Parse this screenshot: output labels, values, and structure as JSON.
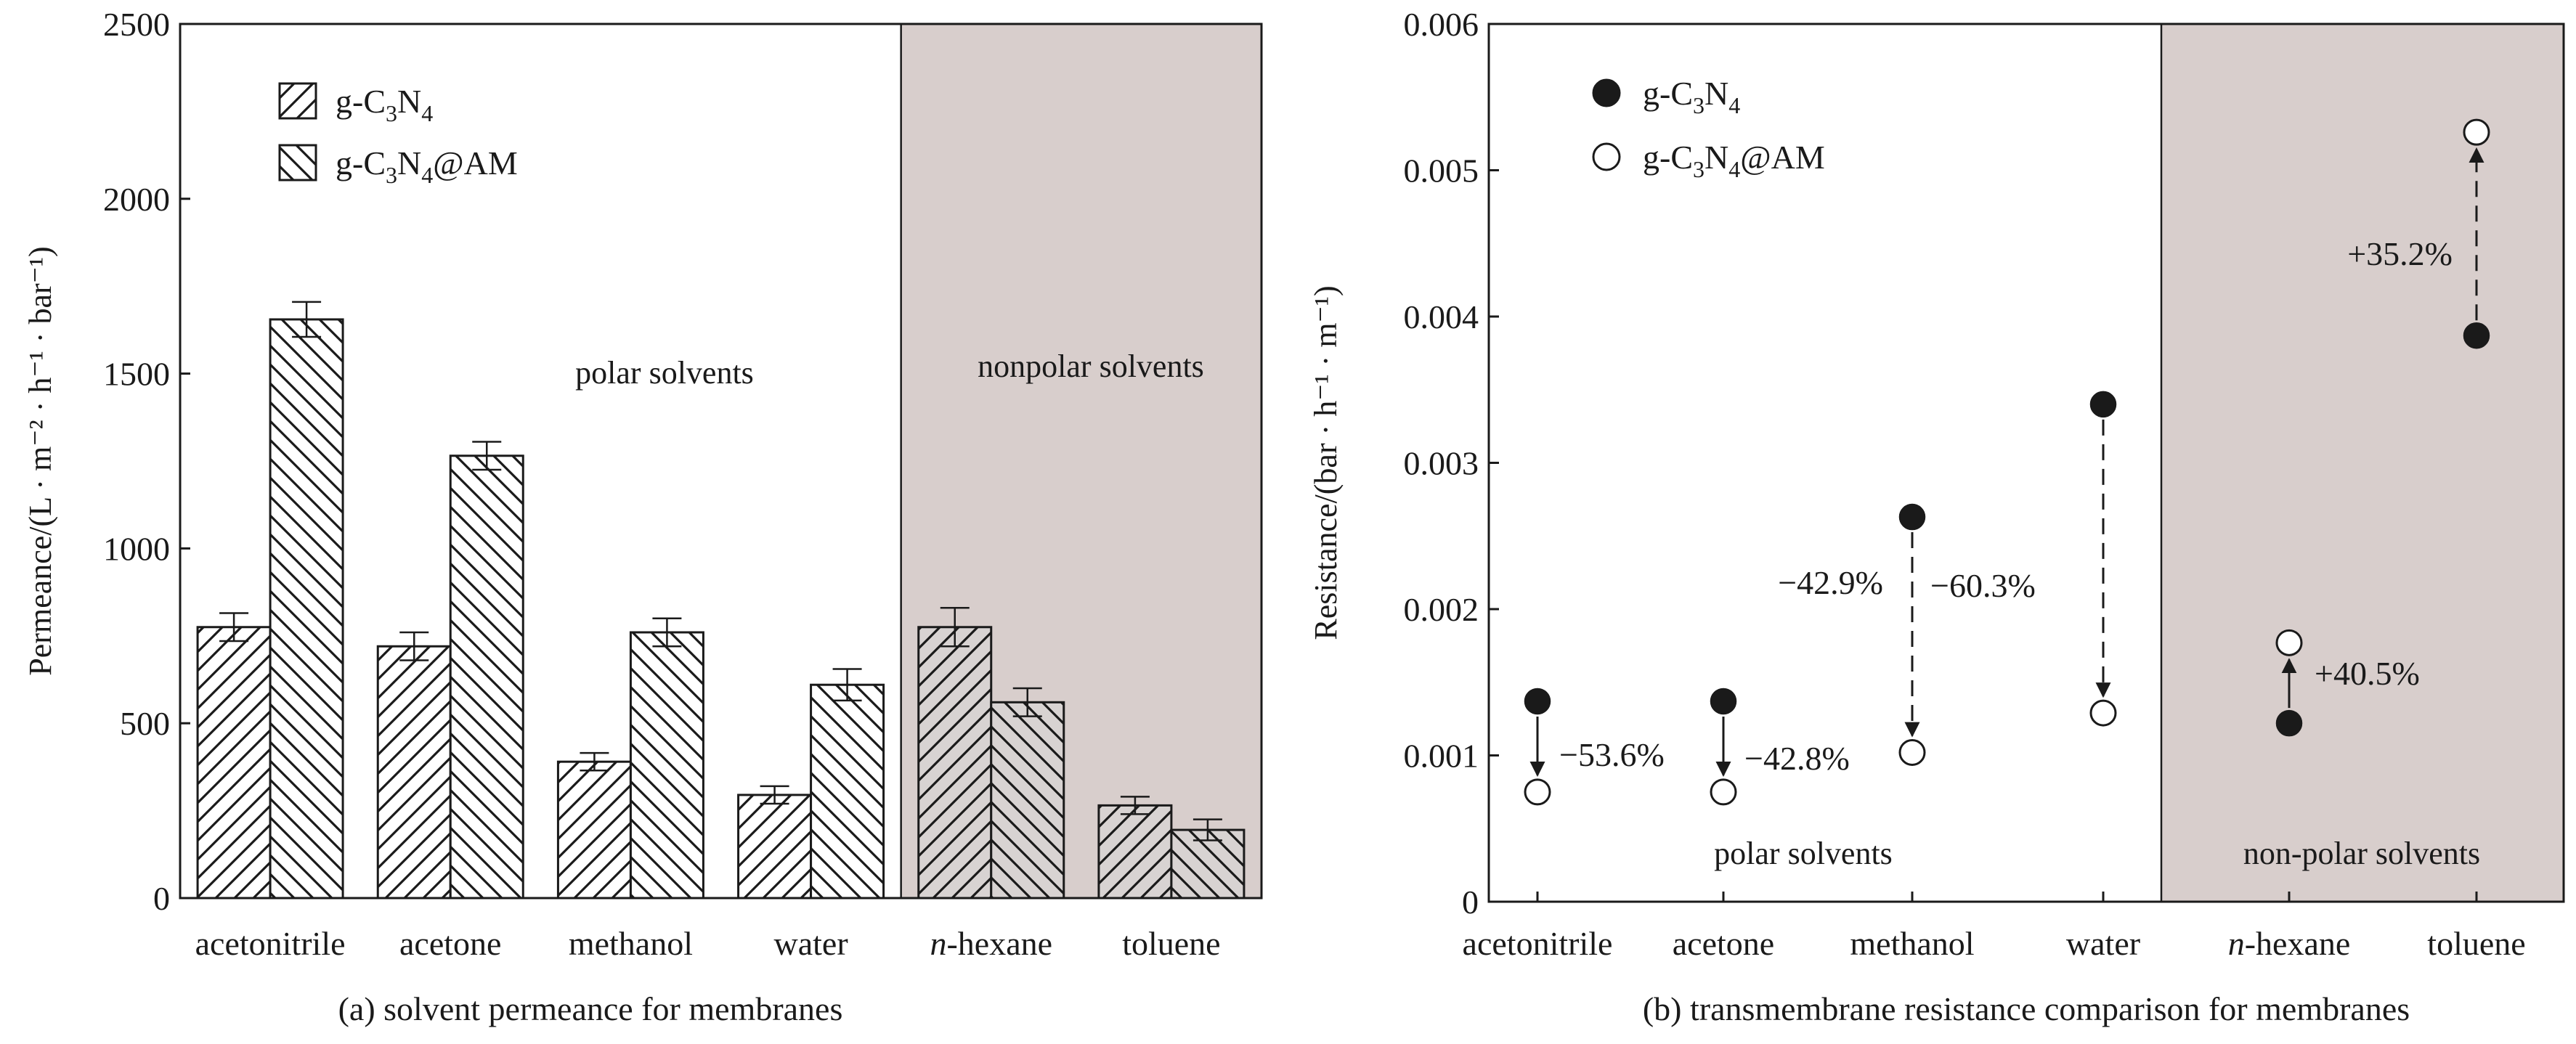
{
  "chart_data": [
    {
      "type": "bar",
      "caption": "(a) solvent permeance for membranes",
      "ylabel": "Permeance/(L · m⁻² · h⁻¹ · bar⁻¹)",
      "ylim": [
        0,
        2500
      ],
      "yticks": [
        "0",
        "500",
        "1000",
        "1500",
        "2000",
        "2500"
      ],
      "categories": [
        "acetonitrile",
        "acetone",
        "methanol",
        "water",
        "n-hexane",
        "toluene"
      ],
      "italic_prefix": [
        null,
        null,
        null,
        null,
        "n",
        null
      ],
      "series": [
        {
          "name": "g-C3N4",
          "legend": {
            "pre": "g-C",
            "s1": "3",
            "mid": "N",
            "s2": "4",
            "post": ""
          },
          "values": [
            775,
            720,
            390,
            295,
            775,
            265
          ],
          "errors": [
            40,
            40,
            25,
            25,
            55,
            25
          ],
          "hatch": "forward"
        },
        {
          "name": "g-C3N4@AM",
          "legend": {
            "pre": "g-C",
            "s1": "3",
            "mid": "N",
            "s2": "4",
            "post": "@AM"
          },
          "values": [
            1655,
            1265,
            760,
            610,
            560,
            195
          ],
          "errors": [
            50,
            40,
            40,
            45,
            40,
            30
          ],
          "hatch": "backward"
        }
      ],
      "regions": [
        {
          "label": "polar solvents",
          "from": 0,
          "to": 3,
          "shaded": false
        },
        {
          "label": "nonpolar solvents",
          "from": 4,
          "to": 5,
          "shaded": true,
          "color": "#d8cecc"
        }
      ]
    },
    {
      "type": "scatter",
      "caption": "(b) transmembrane resistance comparison for membranes",
      "ylabel": "Resistance/(bar · h⁻¹ · m⁻¹)",
      "ylim": [
        0,
        0.006
      ],
      "yticks": [
        "0",
        "0.001",
        "0.002",
        "0.003",
        "0.004",
        "0.005",
        "0.006"
      ],
      "categories": [
        "acetonitrile",
        "acetone",
        "methanol",
        "water",
        "n-hexane",
        "toluene"
      ],
      "italic_prefix": [
        null,
        null,
        null,
        null,
        "n",
        null
      ],
      "series": [
        {
          "name": "g-C3N4",
          "legend": {
            "pre": "g-C",
            "s1": "3",
            "mid": "N",
            "s2": "4",
            "post": ""
          },
          "marker": "filled",
          "values": [
            0.00137,
            0.00137,
            0.00263,
            0.0034,
            0.00122,
            0.00387
          ]
        },
        {
          "name": "g-C3N4@AM",
          "legend": {
            "pre": "g-C",
            "s1": "3",
            "mid": "N",
            "s2": "4",
            "post": "@AM"
          },
          "marker": "open",
          "values": [
            0.00075,
            0.00075,
            0.00102,
            0.00129,
            0.00177,
            0.00526
          ]
        }
      ],
      "changes": [
        "−53.6%",
        "−42.8%",
        "−42.9%",
        "−60.3%",
        "+40.5%",
        "+35.2%"
      ],
      "regions": [
        {
          "label": "polar solvents",
          "from": 0,
          "to": 3,
          "shaded": false
        },
        {
          "label": "non-polar solvents",
          "from": 4,
          "to": 5,
          "shaded": true,
          "color": "#d8cecc"
        }
      ]
    }
  ]
}
